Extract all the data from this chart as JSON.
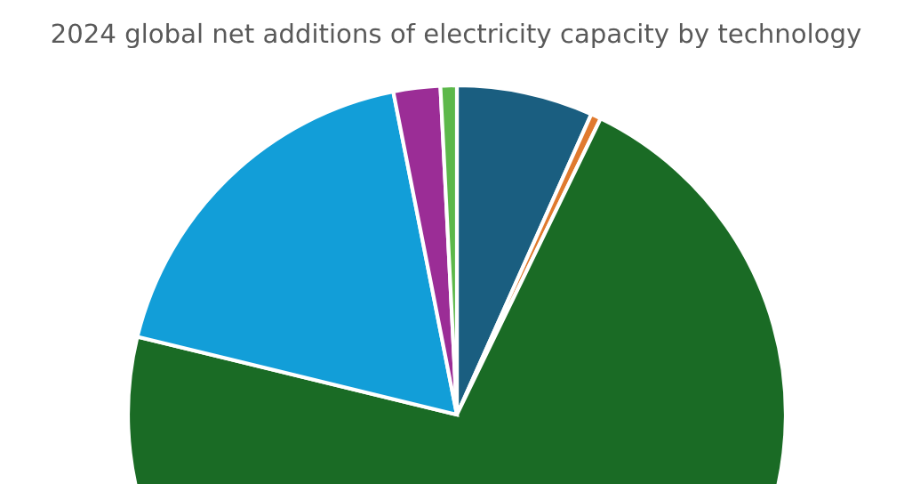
{
  "chart_data": {
    "type": "pie",
    "title": "2024 global net additions of electricity capacity by technology",
    "categories": [
      null,
      null,
      null,
      null,
      null,
      null
    ],
    "values": [
      6.7,
      0.5,
      71.6,
      18.1,
      2.3,
      0.8
    ],
    "colors": [
      "#1a5e80",
      "#e07a2e",
      "#1a6b25",
      "#129ed8",
      "#9b2d96",
      "#5cb84a"
    ]
  }
}
